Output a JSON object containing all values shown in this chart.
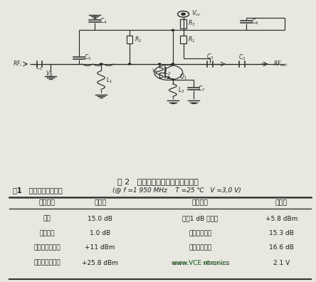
{
  "fig_caption": "图 2   高线性噪声放大器电路原理图",
  "table_title_left": "表1   器件典型性能参数",
  "table_title_right": "(@ f =1 950 MHz    T =25 ℃   V =3,0 V)",
  "col_headers": [
    "技术参数",
    "典型值",
    "技术参数",
    "典型值"
  ],
  "rows": [
    [
      "增益",
      "15.0 dB",
      "输出1 dB 压缩点",
      "+5.8 dBm"
    ],
    [
      "噪声系数",
      "1.0 dB",
      "输入回波损耗",
      "15.3 dB"
    ],
    [
      "输入三阶交截点",
      "+11 dBm",
      "输出回波损耗",
      "16.6 dB"
    ],
    [
      "输出三阶交截点",
      "+25.8 dBm",
      "www.VCE ntronics",
      "2.1 V"
    ]
  ],
  "bg_color": "#e8e8e0",
  "text_color": "#1a1a1a",
  "line_color": "#2a2a2a",
  "table_line_color": "#333333",
  "white_bg": "#f0f0ea"
}
